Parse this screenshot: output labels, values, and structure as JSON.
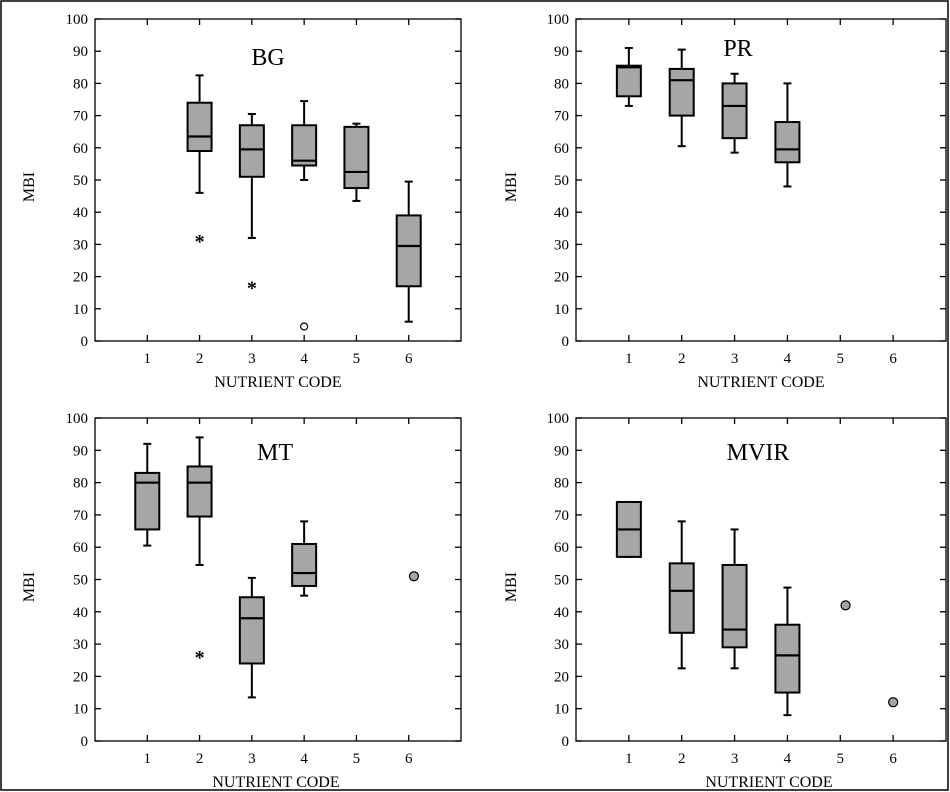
{
  "chart_data": [
    {
      "type": "box",
      "title": "BG",
      "xlabel": "NUTRIENT CODE",
      "ylabel": "MBI",
      "xlim": [
        0,
        7
      ],
      "ylim": [
        0,
        100
      ],
      "xticks": [
        1,
        2,
        3,
        4,
        5,
        6
      ],
      "yticks": [
        0,
        10,
        20,
        30,
        40,
        50,
        60,
        70,
        80,
        90,
        100
      ],
      "boxes": [
        {
          "x": 2,
          "low": 46,
          "q1": 59,
          "median": 63.5,
          "q3": 74,
          "high": 82.5
        },
        {
          "x": 3,
          "low": 32,
          "q1": 51,
          "median": 59.5,
          "q3": 67,
          "high": 70.5
        },
        {
          "x": 4,
          "low": 50,
          "q1": 54.5,
          "median": 56,
          "q3": 67,
          "high": 74.5
        },
        {
          "x": 5,
          "low": 43.5,
          "q1": 47.5,
          "median": 52.5,
          "q3": 66.5,
          "high": 67.5
        },
        {
          "x": 6,
          "low": 6,
          "q1": 17,
          "median": 29.5,
          "q3": 39,
          "high": 49.5
        }
      ],
      "outliers": [
        {
          "x": 2,
          "y": 32,
          "marker": "star"
        },
        {
          "x": 3,
          "y": 17.5,
          "marker": "star"
        },
        {
          "x": 4,
          "y": 4.5,
          "marker": "open-circle"
        }
      ]
    },
    {
      "type": "box",
      "title": "PR",
      "xlabel": "NUTRIENT CODE",
      "ylabel": "MBI",
      "xlim": [
        0,
        7
      ],
      "ylim": [
        0,
        100
      ],
      "xticks": [
        1,
        2,
        3,
        4,
        5,
        6
      ],
      "yticks": [
        0,
        10,
        20,
        30,
        40,
        50,
        60,
        70,
        80,
        90,
        100
      ],
      "boxes": [
        {
          "x": 1,
          "low": 73,
          "q1": 76,
          "median": 85,
          "q3": 85.5,
          "high": 91
        },
        {
          "x": 2,
          "low": 60.5,
          "q1": 70,
          "median": 81,
          "q3": 84.5,
          "high": 90.5
        },
        {
          "x": 3,
          "low": 58.5,
          "q1": 63,
          "median": 73,
          "q3": 80,
          "high": 83
        },
        {
          "x": 4,
          "low": 48,
          "q1": 55.5,
          "median": 59.5,
          "q3": 68,
          "high": 80
        }
      ],
      "outliers": []
    },
    {
      "type": "box",
      "title": "MT",
      "xlabel": "NUTRIENT CODE",
      "ylabel": "MBI",
      "xlim": [
        0,
        7
      ],
      "ylim": [
        0,
        100
      ],
      "xticks": [
        1,
        2,
        3,
        4,
        5,
        6
      ],
      "yticks": [
        0,
        10,
        20,
        30,
        40,
        50,
        60,
        70,
        80,
        90,
        100
      ],
      "boxes": [
        {
          "x": 1,
          "low": 60.5,
          "q1": 65.5,
          "median": 80,
          "q3": 83,
          "high": 92
        },
        {
          "x": 2,
          "low": 54.5,
          "q1": 69.5,
          "median": 80,
          "q3": 85,
          "high": 94
        },
        {
          "x": 3,
          "low": 13.5,
          "q1": 24,
          "median": 38,
          "q3": 44.5,
          "high": 50.5
        },
        {
          "x": 4,
          "low": 45,
          "q1": 48,
          "median": 52,
          "q3": 61,
          "high": 68
        }
      ],
      "outliers": [
        {
          "x": 2,
          "y": 27,
          "marker": "star"
        },
        {
          "x": 6.1,
          "y": 51,
          "marker": "filled-circle"
        }
      ]
    },
    {
      "type": "box",
      "title": "MVIR",
      "xlabel": "NUTRIENT CODE",
      "ylabel": "MBI",
      "xlim": [
        0,
        7
      ],
      "ylim": [
        0,
        100
      ],
      "xticks": [
        1,
        2,
        3,
        4,
        5,
        6
      ],
      "yticks": [
        0,
        10,
        20,
        30,
        40,
        50,
        60,
        70,
        80,
        90,
        100
      ],
      "boxes": [
        {
          "x": 1,
          "low": 57,
          "q1": 57,
          "median": 65.5,
          "q3": 74,
          "high": 74
        },
        {
          "x": 2,
          "low": 22.5,
          "q1": 33.5,
          "median": 46.5,
          "q3": 55,
          "high": 68
        },
        {
          "x": 3,
          "low": 22.5,
          "q1": 29,
          "median": 34.5,
          "q3": 54.5,
          "high": 65.5
        },
        {
          "x": 4,
          "low": 8,
          "q1": 15,
          "median": 26.5,
          "q3": 36,
          "high": 47.5
        }
      ],
      "outliers": [
        {
          "x": 5.1,
          "y": 42,
          "marker": "filled-circle"
        },
        {
          "x": 6,
          "y": 12,
          "marker": "filled-circle"
        }
      ]
    }
  ]
}
